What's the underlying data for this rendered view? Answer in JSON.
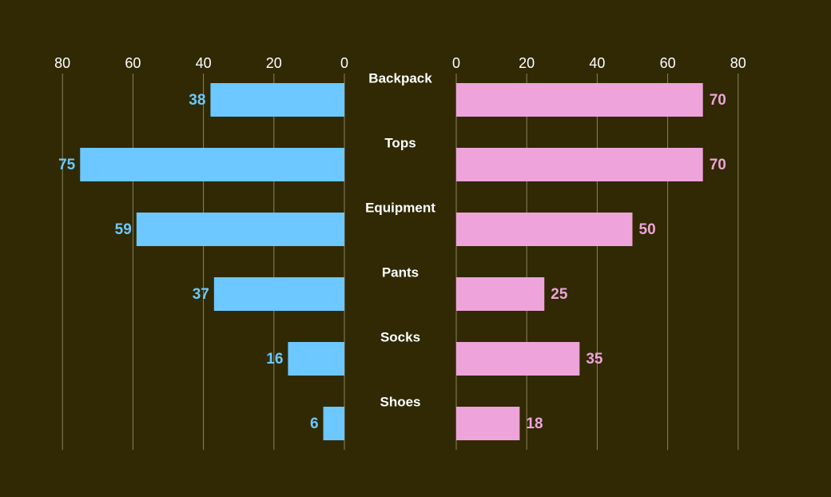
{
  "chart_data": {
    "type": "bar",
    "orientation": "horizontal-butterfly",
    "categories": [
      "Backpack",
      "Tops",
      "Equipment",
      "Pants",
      "Socks",
      "Shoes"
    ],
    "series": [
      {
        "side": "left",
        "values": [
          38,
          75,
          59,
          37,
          16,
          6
        ],
        "color": "#6cc8ff"
      },
      {
        "side": "right",
        "values": [
          70,
          70,
          50,
          25,
          35,
          18
        ],
        "color": "#eea3da"
      }
    ],
    "xlim": [
      0,
      80
    ],
    "xticks": [
      0,
      20,
      40,
      60,
      80
    ],
    "grid": true,
    "background": "#302903",
    "label_color": "#ffffff",
    "grid_color": "#8a845f"
  }
}
